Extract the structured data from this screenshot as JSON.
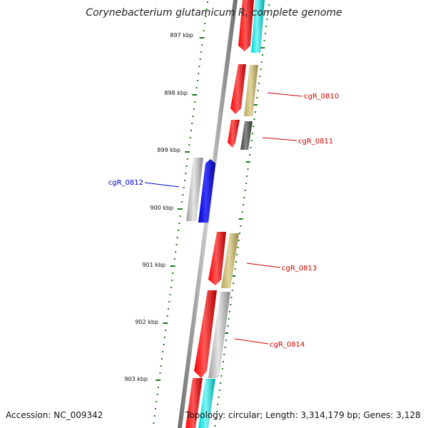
{
  "title": "Corynebacterium glutamicum R, complete genome",
  "footer": {
    "accession": "Accession: NC_009342",
    "summary": "Topology: circular; Length: 3,314,179 bp; Genes: 3,128"
  },
  "ruler": {
    "unit": "kbp",
    "labels": [
      "897 kbp",
      "898 kbp",
      "899 kbp",
      "900 kbp",
      "901 kbp",
      "902 kbp",
      "903 kbp"
    ],
    "tick_color": "#1a7a1a"
  },
  "colors": {
    "backbone": "#8a8a8a",
    "cds_red": "#ff0000",
    "cyan": "#00e5e5",
    "khaki": "#c8b878",
    "gray": "#bdbdbd",
    "dark_gray": "#606060",
    "blue": "#0000ff",
    "label_red": "#cc0000",
    "label_blue": "#0000cc"
  },
  "genes": [
    {
      "name": "cgR_0810",
      "color": "#cc0000"
    },
    {
      "name": "cgR_0811",
      "color": "#cc0000"
    },
    {
      "name": "cgR_0812",
      "color": "#0000cc"
    },
    {
      "name": "cgR_0813",
      "color": "#cc0000"
    },
    {
      "name": "cgR_0814",
      "color": "#cc0000"
    }
  ]
}
